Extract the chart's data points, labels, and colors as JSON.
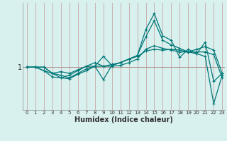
{
  "xlabel": "Humidex (Indice chaleur)",
  "background_color": "#d8f0ee",
  "vgrid_color": "#c8a8a8",
  "hline_color": "#b09090",
  "line_color": "#007878",
  "xmin": 0,
  "xmax": 23,
  "ymin": 0.52,
  "ymax": 1.72,
  "ytick_val": 1.0,
  "xticks": [
    0,
    1,
    2,
    3,
    4,
    5,
    6,
    7,
    8,
    9,
    10,
    11,
    12,
    13,
    14,
    15,
    16,
    17,
    18,
    19,
    20,
    21,
    22,
    23
  ],
  "series": [
    [
      1.0,
      1.0,
      1.0,
      0.93,
      0.95,
      0.93,
      0.97,
      1.01,
      1.05,
      1.01,
      1.03,
      1.05,
      1.09,
      1.12,
      1.18,
      1.2,
      1.19,
      1.2,
      1.19,
      1.17,
      1.2,
      1.23,
      1.19,
      0.93
    ],
    [
      1.0,
      1.0,
      1.0,
      0.93,
      0.91,
      0.88,
      0.93,
      0.98,
      1.01,
      0.86,
      1.02,
      1.05,
      1.09,
      1.13,
      1.34,
      1.52,
      1.3,
      1.25,
      1.21,
      1.17,
      1.15,
      1.28,
      0.84,
      0.93
    ],
    [
      1.0,
      1.0,
      0.96,
      0.89,
      0.88,
      0.87,
      0.92,
      0.96,
      1.01,
      1.12,
      1.02,
      1.05,
      1.09,
      1.13,
      1.42,
      1.6,
      1.35,
      1.3,
      1.11,
      1.2,
      1.15,
      1.12,
      0.59,
      0.91
    ],
    [
      1.0,
      1.0,
      0.96,
      0.93,
      0.88,
      0.91,
      0.96,
      1.01,
      1.01,
      1.01,
      1.01,
      1.02,
      1.05,
      1.09,
      1.2,
      1.24,
      1.21,
      1.19,
      1.17,
      1.17,
      1.17,
      1.17,
      1.14,
      0.88
    ]
  ]
}
